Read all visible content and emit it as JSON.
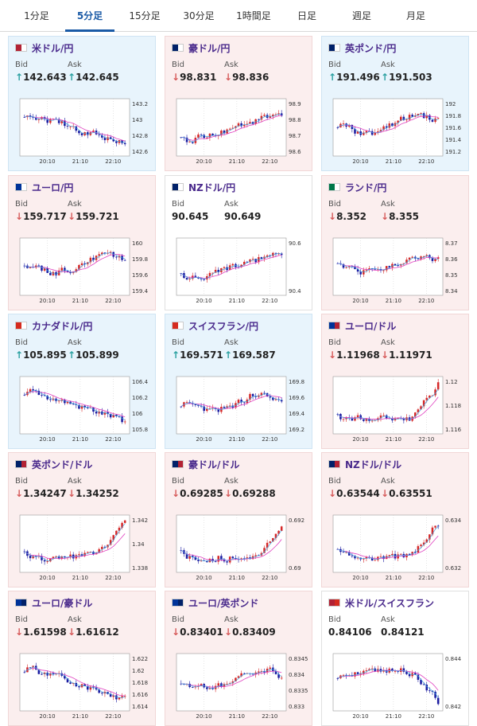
{
  "tabs": [
    {
      "label": "1分足",
      "active": false
    },
    {
      "label": "5分足",
      "active": true
    },
    {
      "label": "15分足",
      "active": false
    },
    {
      "label": "30分足",
      "active": false
    },
    {
      "label": "1時間足",
      "active": false
    },
    {
      "label": "日足",
      "active": false
    },
    {
      "label": "週足",
      "active": false
    },
    {
      "label": "月足",
      "active": false
    }
  ],
  "labels": {
    "bid": "Bid",
    "ask": "Ask"
  },
  "colors": {
    "up": "#2aa0a0",
    "down": "#d65a5a",
    "candle_up": "#d62828",
    "candle_down": "#1a1aa0",
    "ma": "#e040c0",
    "ma2": "#40a0e0"
  },
  "pairs": [
    {
      "name": "米ドル/円",
      "bid": "142.643",
      "ask": "142.645",
      "dir": "up",
      "flags": [
        "#b22234",
        "#ffffff"
      ],
      "y_ticks": [
        "143.2",
        "143",
        "142.8",
        "142.6"
      ],
      "x_ticks": [
        "20:10",
        "21:10",
        "22:10"
      ],
      "trend": "down"
    },
    {
      "name": "豪ドル/円",
      "bid": "98.831",
      "ask": "98.836",
      "dir": "down",
      "flags": [
        "#012169",
        "#ffffff"
      ],
      "y_ticks": [
        "98.9",
        "98.8",
        "98.7",
        "98.6"
      ],
      "x_ticks": [
        "20:10",
        "21:10",
        "22:10"
      ],
      "trend": "up"
    },
    {
      "name": "英ポンド/円",
      "bid": "191.496",
      "ask": "191.503",
      "dir": "up",
      "flags": [
        "#012169",
        "#ffffff"
      ],
      "y_ticks": [
        "192",
        "191.8",
        "191.6",
        "191.4",
        "191.2"
      ],
      "x_ticks": [
        "20:10",
        "21:10",
        "22:10"
      ],
      "trend": "flat"
    },
    {
      "name": "ユーロ/円",
      "bid": "159.717",
      "ask": "159.721",
      "dir": "down",
      "flags": [
        "#003399",
        "#ffffff"
      ],
      "y_ticks": [
        "160",
        "159.8",
        "159.6",
        "159.4"
      ],
      "x_ticks": [
        "20:10",
        "21:10",
        "22:10"
      ],
      "trend": "flat"
    },
    {
      "name": "NZドル/円",
      "bid": "90.645",
      "ask": "90.649",
      "dir": "none",
      "flags": [
        "#012169",
        "#ffffff"
      ],
      "y_ticks": [
        "90.6",
        "90.4"
      ],
      "x_ticks": [
        "20:10",
        "21:10",
        "22:10"
      ],
      "trend": "up"
    },
    {
      "name": "ランド/円",
      "bid": "8.352",
      "ask": "8.355",
      "dir": "down",
      "flags": [
        "#007749",
        "#ffffff"
      ],
      "y_ticks": [
        "8.37",
        "8.36",
        "8.35",
        "8.34"
      ],
      "x_ticks": [
        "20:10",
        "21:10",
        "22:10"
      ],
      "trend": "flat"
    },
    {
      "name": "カナダドル/円",
      "bid": "105.895",
      "ask": "105.899",
      "dir": "up",
      "flags": [
        "#d52b1e",
        "#ffffff"
      ],
      "y_ticks": [
        "106.4",
        "106.2",
        "106",
        "105.8"
      ],
      "x_ticks": [
        "20:10",
        "21:10",
        "22:10"
      ],
      "trend": "down"
    },
    {
      "name": "スイスフラン/円",
      "bid": "169.571",
      "ask": "169.587",
      "dir": "up",
      "flags": [
        "#d52b1e",
        "#ffffff"
      ],
      "y_ticks": [
        "169.8",
        "169.6",
        "169.4",
        "169.2"
      ],
      "x_ticks": [
        "20:10",
        "21:10",
        "22:10"
      ],
      "trend": "flat"
    },
    {
      "name": "ユーロ/ドル",
      "bid": "1.11968",
      "ask": "1.11971",
      "dir": "down",
      "flags": [
        "#003399",
        "#b22234"
      ],
      "y_ticks": [
        "1.12",
        "1.118",
        "1.116"
      ],
      "x_ticks": [
        "20:10",
        "21:10",
        "22:10"
      ],
      "trend": "upend"
    },
    {
      "name": "英ポンド/ドル",
      "bid": "1.34247",
      "ask": "1.34252",
      "dir": "down",
      "flags": [
        "#012169",
        "#b22234"
      ],
      "y_ticks": [
        "1.342",
        "1.34",
        "1.338"
      ],
      "x_ticks": [
        "20:10",
        "21:10",
        "22:10"
      ],
      "trend": "upend"
    },
    {
      "name": "豪ドル/ドル",
      "bid": "0.69285",
      "ask": "0.69288",
      "dir": "down",
      "flags": [
        "#012169",
        "#b22234"
      ],
      "y_ticks": [
        "0.692",
        "0.69"
      ],
      "x_ticks": [
        "20:10",
        "21:10",
        "22:10"
      ],
      "trend": "upend"
    },
    {
      "name": "NZドル/ドル",
      "bid": "0.63544",
      "ask": "0.63551",
      "dir": "down",
      "flags": [
        "#012169",
        "#b22234"
      ],
      "y_ticks": [
        "0.634",
        "0.632"
      ],
      "x_ticks": [
        "20:10",
        "21:10",
        "22:10"
      ],
      "trend": "upend"
    },
    {
      "name": "ユーロ/豪ドル",
      "bid": "1.61598",
      "ask": "1.61612",
      "dir": "down",
      "flags": [
        "#003399",
        "#012169"
      ],
      "y_ticks": [
        "1.622",
        "1.62",
        "1.618",
        "1.616",
        "1.614"
      ],
      "x_ticks": [
        "20:10",
        "21:10",
        "22:10"
      ],
      "trend": "down"
    },
    {
      "name": "ユーロ/英ポンド",
      "bid": "0.83401",
      "ask": "0.83409",
      "dir": "down",
      "flags": [
        "#003399",
        "#012169"
      ],
      "y_ticks": [
        "0.8345",
        "0.834",
        "0.8335",
        "0.833"
      ],
      "x_ticks": [
        "20:10",
        "21:10",
        "22:10"
      ],
      "trend": "flat"
    },
    {
      "name": "米ドル/スイスフラン",
      "bid": "0.84106",
      "ask": "0.84121",
      "dir": "none",
      "flags": [
        "#b22234",
        "#d52b1e"
      ],
      "y_ticks": [
        "0.844",
        "0.842"
      ],
      "x_ticks": [
        "20:10",
        "21:10",
        "22:10"
      ],
      "trend": "downend"
    }
  ]
}
